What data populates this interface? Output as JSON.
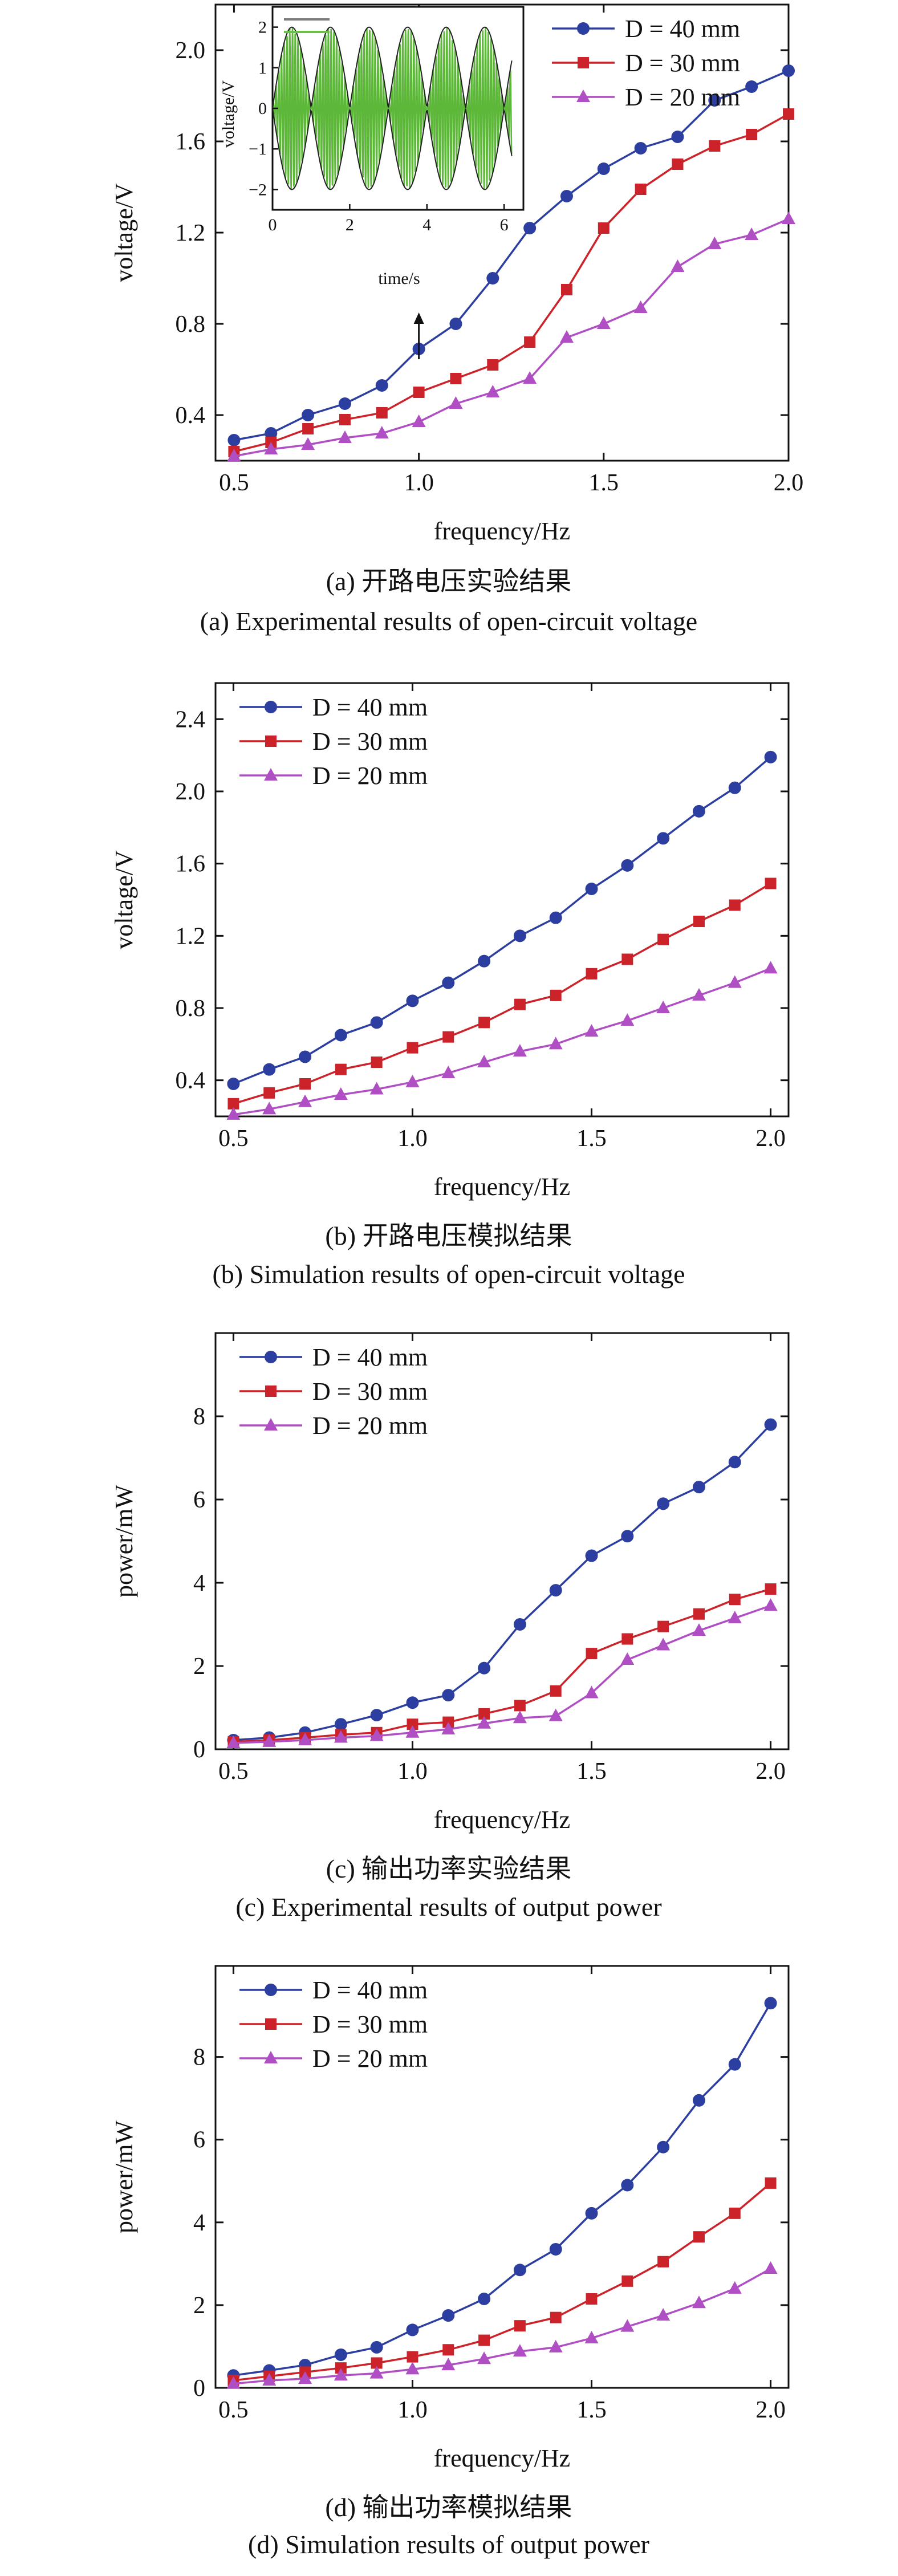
{
  "chart_data": [
    {
      "type": "line",
      "caption_cn": "(a) 开路电压实验结果",
      "caption_en": "(a) Experimental results of open-circuit voltage",
      "xlabel": "frequency/Hz",
      "ylabel": "voltage/V",
      "xlim": [
        0.45,
        2.0
      ],
      "ylim": [
        0.2,
        2.2
      ],
      "xticks": [
        "0.5",
        "1.0",
        "1.5",
        "2.0"
      ],
      "yticks": [
        "0.4",
        "0.8",
        "1.2",
        "1.6",
        "2.0"
      ],
      "legend_position": "top-right",
      "x": [
        0.5,
        0.6,
        0.7,
        0.8,
        0.9,
        1.0,
        1.1,
        1.2,
        1.3,
        1.4,
        1.5,
        1.6,
        1.7,
        1.8,
        1.9,
        2.0
      ],
      "series": [
        {
          "name": "D = 40 mm",
          "marker": "circle",
          "color": "#2c3e9f",
          "values": [
            0.29,
            0.32,
            0.4,
            0.45,
            0.53,
            0.69,
            0.8,
            1.0,
            1.22,
            1.36,
            1.48,
            1.57,
            1.62,
            1.78,
            1.84,
            1.91
          ]
        },
        {
          "name": "D = 30 mm",
          "marker": "square",
          "color": "#cc2229",
          "values": [
            0.24,
            0.28,
            0.34,
            0.38,
            0.41,
            0.5,
            0.56,
            0.62,
            0.72,
            0.95,
            1.22,
            1.39,
            1.5,
            1.58,
            1.63,
            1.72
          ]
        },
        {
          "name": "D = 20 mm",
          "marker": "triangle",
          "color": "#b04fc4",
          "values": [
            0.22,
            0.25,
            0.27,
            0.3,
            0.32,
            0.37,
            0.45,
            0.5,
            0.56,
            0.74,
            0.8,
            0.87,
            1.05,
            1.15,
            1.19,
            1.26
          ]
        }
      ],
      "inset": {
        "xlabel": "time/s",
        "ylabel": "voltage/V",
        "xlim": [
          0,
          6.5
        ],
        "ylim": [
          -2.5,
          2.5
        ],
        "xticks": [
          "0",
          "2",
          "4",
          "6"
        ],
        "yticks": [
          "−2",
          "−1",
          "0",
          "1",
          "2"
        ],
        "legend_swatches": [
          "#7a7a7a",
          "#6cc04a"
        ],
        "signal_color": "#5db83a",
        "envelope_color": "#222222",
        "cycles": 6,
        "amplitude": 2.0
      }
    },
    {
      "type": "line",
      "caption_cn": "(b) 开路电压模拟结果",
      "caption_en": "(b) Simulation results of open-circuit voltage",
      "xlabel": "frequency/Hz",
      "ylabel": "voltage/V",
      "xlim": [
        0.45,
        2.05
      ],
      "ylim": [
        0.2,
        2.6
      ],
      "xticks": [
        "0.5",
        "1.0",
        "1.5",
        "2.0"
      ],
      "yticks": [
        "0.4",
        "0.8",
        "1.2",
        "1.6",
        "2.0",
        "2.4"
      ],
      "legend_position": "top-left",
      "x": [
        0.5,
        0.6,
        0.7,
        0.8,
        0.9,
        1.0,
        1.1,
        1.2,
        1.3,
        1.4,
        1.5,
        1.6,
        1.7,
        1.8,
        1.9,
        2.0
      ],
      "series": [
        {
          "name": "D = 40 mm",
          "marker": "circle",
          "color": "#2c3e9f",
          "values": [
            0.38,
            0.46,
            0.53,
            0.65,
            0.72,
            0.84,
            0.94,
            1.06,
            1.2,
            1.3,
            1.46,
            1.59,
            1.74,
            1.89,
            2.02,
            2.19
          ]
        },
        {
          "name": "D = 30 mm",
          "marker": "square",
          "color": "#cc2229",
          "values": [
            0.27,
            0.33,
            0.38,
            0.46,
            0.5,
            0.58,
            0.64,
            0.72,
            0.82,
            0.87,
            0.99,
            1.07,
            1.18,
            1.28,
            1.37,
            1.49
          ]
        },
        {
          "name": "D = 20 mm",
          "marker": "triangle",
          "color": "#b04fc4",
          "values": [
            0.21,
            0.24,
            0.28,
            0.32,
            0.35,
            0.39,
            0.44,
            0.5,
            0.56,
            0.6,
            0.67,
            0.73,
            0.8,
            0.87,
            0.94,
            1.02
          ]
        }
      ]
    },
    {
      "type": "line",
      "caption_cn": "(c) 输出功率实验结果",
      "caption_en": "(c) Experimental results of output power",
      "xlabel": "frequency/Hz",
      "ylabel": "power/mW",
      "xlim": [
        0.45,
        2.05
      ],
      "ylim": [
        0,
        10
      ],
      "xticks": [
        "0.5",
        "1.0",
        "1.5",
        "2.0"
      ],
      "yticks": [
        "0",
        "2",
        "4",
        "6",
        "8"
      ],
      "legend_position": "top-left",
      "x": [
        0.5,
        0.6,
        0.7,
        0.8,
        0.9,
        1.0,
        1.1,
        1.2,
        1.3,
        1.4,
        1.5,
        1.6,
        1.7,
        1.8,
        1.9,
        2.0
      ],
      "series": [
        {
          "name": "D = 40 mm",
          "marker": "circle",
          "color": "#2c3e9f",
          "values": [
            0.22,
            0.28,
            0.4,
            0.6,
            0.82,
            1.12,
            1.3,
            1.95,
            3.0,
            3.82,
            4.65,
            5.12,
            5.9,
            6.3,
            6.9,
            7.8
          ]
        },
        {
          "name": "D = 30 mm",
          "marker": "square",
          "color": "#cc2229",
          "values": [
            0.18,
            0.22,
            0.28,
            0.35,
            0.4,
            0.6,
            0.65,
            0.85,
            1.05,
            1.4,
            2.3,
            2.65,
            2.95,
            3.25,
            3.6,
            3.85
          ]
        },
        {
          "name": "D = 20 mm",
          "marker": "triangle",
          "color": "#b04fc4",
          "values": [
            0.15,
            0.18,
            0.22,
            0.28,
            0.32,
            0.4,
            0.48,
            0.62,
            0.75,
            0.8,
            1.35,
            2.15,
            2.5,
            2.85,
            3.15,
            3.45
          ]
        }
      ]
    },
    {
      "type": "line",
      "caption_cn": "(d) 输出功率模拟结果",
      "caption_en": "(d) Simulation results of output power",
      "xlabel": "frequency/Hz",
      "ylabel": "power/mW",
      "xlim": [
        0.45,
        2.05
      ],
      "ylim": [
        0,
        10.2
      ],
      "xticks": [
        "0.5",
        "1.0",
        "1.5",
        "2.0"
      ],
      "yticks": [
        "0",
        "2",
        "4",
        "6",
        "8"
      ],
      "legend_position": "top-left",
      "x": [
        0.5,
        0.6,
        0.7,
        0.8,
        0.9,
        1.0,
        1.1,
        1.2,
        1.3,
        1.4,
        1.5,
        1.6,
        1.7,
        1.8,
        1.9,
        2.0
      ],
      "series": [
        {
          "name": "D = 40 mm",
          "marker": "circle",
          "color": "#2c3e9f",
          "values": [
            0.3,
            0.42,
            0.55,
            0.8,
            0.98,
            1.4,
            1.75,
            2.15,
            2.85,
            3.35,
            4.22,
            4.9,
            5.82,
            6.95,
            7.82,
            9.3
          ]
        },
        {
          "name": "D = 30 mm",
          "marker": "square",
          "color": "#cc2229",
          "values": [
            0.18,
            0.28,
            0.38,
            0.48,
            0.6,
            0.75,
            0.92,
            1.15,
            1.5,
            1.7,
            2.15,
            2.58,
            3.05,
            3.65,
            4.22,
            4.95
          ]
        },
        {
          "name": "D = 20 mm",
          "marker": "triangle",
          "color": "#b04fc4",
          "values": [
            0.1,
            0.18,
            0.22,
            0.3,
            0.35,
            0.45,
            0.55,
            0.7,
            0.88,
            0.98,
            1.2,
            1.48,
            1.75,
            2.05,
            2.4,
            2.88
          ]
        }
      ]
    }
  ]
}
